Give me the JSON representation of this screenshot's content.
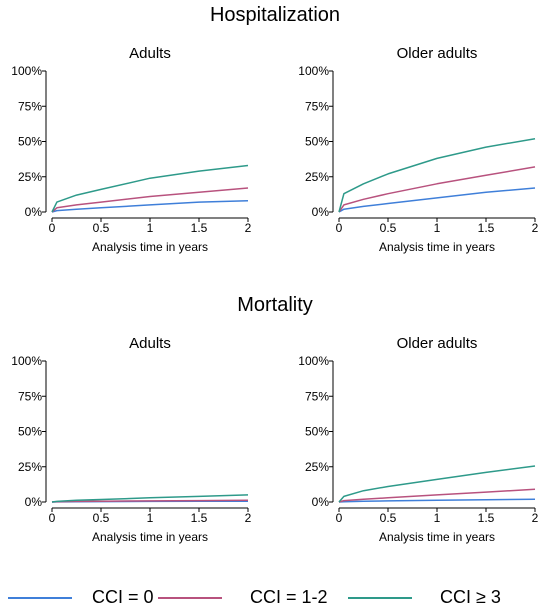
{
  "sections": [
    {
      "title": "Hospitalization"
    },
    {
      "title": "Mortality"
    }
  ],
  "colors": {
    "cci0": "#3f7fd9",
    "cci12": "#b8527e",
    "cci3": "#2e9a8a",
    "axis": "#000000"
  },
  "legend": [
    {
      "label": "CCI = 0",
      "color": "#3f7fd9"
    },
    {
      "label": "CCI = 1-2",
      "color": "#b8527e"
    },
    {
      "label": "CCI ≥ 3",
      "color": "#2e9a8a"
    }
  ],
  "chart_data": [
    {
      "type": "line",
      "section": "Hospitalization",
      "title": "Adults",
      "xlabel": "Analysis time in years",
      "ylabel": "",
      "xlim": [
        0,
        2
      ],
      "ylim": [
        0,
        1
      ],
      "xticks": [
        "0",
        "0.5",
        "1",
        "1.5",
        "2"
      ],
      "yticks": [
        "0%",
        "25%",
        "50%",
        "75%",
        "100%"
      ],
      "x": [
        0,
        0.05,
        0.25,
        0.5,
        1,
        1.5,
        2
      ],
      "series": [
        {
          "name": "CCI = 0",
          "values": [
            0,
            0.01,
            0.02,
            0.03,
            0.05,
            0.07,
            0.08
          ]
        },
        {
          "name": "CCI = 1-2",
          "values": [
            0,
            0.03,
            0.05,
            0.07,
            0.11,
            0.14,
            0.17
          ]
        },
        {
          "name": "CCI ≥ 3",
          "values": [
            0,
            0.07,
            0.12,
            0.16,
            0.24,
            0.29,
            0.33
          ]
        }
      ]
    },
    {
      "type": "line",
      "section": "Hospitalization",
      "title": "Older adults",
      "xlabel": "Analysis time in years",
      "ylabel": "",
      "xlim": [
        0,
        2
      ],
      "ylim": [
        0,
        1
      ],
      "xticks": [
        "0",
        "0.5",
        "1",
        "1.5",
        "2"
      ],
      "yticks": [
        "0%",
        "25%",
        "50%",
        "75%",
        "100%"
      ],
      "x": [
        0,
        0.05,
        0.25,
        0.5,
        1,
        1.5,
        2
      ],
      "series": [
        {
          "name": "CCI = 0",
          "values": [
            0,
            0.02,
            0.04,
            0.06,
            0.1,
            0.14,
            0.17
          ]
        },
        {
          "name": "CCI = 1-2",
          "values": [
            0,
            0.05,
            0.09,
            0.13,
            0.2,
            0.26,
            0.32
          ]
        },
        {
          "name": "CCI ≥ 3",
          "values": [
            0,
            0.13,
            0.2,
            0.27,
            0.38,
            0.46,
            0.52
          ]
        }
      ]
    },
    {
      "type": "line",
      "section": "Mortality",
      "title": "Adults",
      "xlabel": "Analysis time in years",
      "ylabel": "",
      "xlim": [
        0,
        2
      ],
      "ylim": [
        0,
        1
      ],
      "xticks": [
        "0",
        "0.5",
        "1",
        "1.5",
        "2"
      ],
      "yticks": [
        "0%",
        "25%",
        "50%",
        "75%",
        "100%"
      ],
      "x": [
        0,
        0.05,
        0.25,
        0.5,
        1,
        1.5,
        2
      ],
      "series": [
        {
          "name": "CCI = 0",
          "values": [
            0,
            0.001,
            0.002,
            0.003,
            0.004,
            0.005,
            0.006
          ]
        },
        {
          "name": "CCI = 1-2",
          "values": [
            0,
            0.002,
            0.004,
            0.006,
            0.008,
            0.01,
            0.012
          ]
        },
        {
          "name": "CCI ≥ 3",
          "values": [
            0,
            0.004,
            0.012,
            0.018,
            0.03,
            0.04,
            0.05
          ]
        }
      ]
    },
    {
      "type": "line",
      "section": "Mortality",
      "title": "Older adults",
      "xlabel": "Analysis time in years",
      "ylabel": "",
      "xlim": [
        0,
        2
      ],
      "ylim": [
        0,
        1
      ],
      "xticks": [
        "0",
        "0.5",
        "1",
        "1.5",
        "2"
      ],
      "yticks": [
        "0%",
        "25%",
        "50%",
        "75%",
        "100%"
      ],
      "x": [
        0,
        0.05,
        0.25,
        0.5,
        1,
        1.5,
        2
      ],
      "series": [
        {
          "name": "CCI = 0",
          "values": [
            0,
            0.002,
            0.005,
            0.008,
            0.012,
            0.016,
            0.02
          ]
        },
        {
          "name": "CCI = 1-2",
          "values": [
            0,
            0.01,
            0.02,
            0.03,
            0.05,
            0.07,
            0.09
          ]
        },
        {
          "name": "CCI ≥ 3",
          "values": [
            0,
            0.04,
            0.08,
            0.11,
            0.16,
            0.21,
            0.255
          ]
        }
      ]
    }
  ]
}
